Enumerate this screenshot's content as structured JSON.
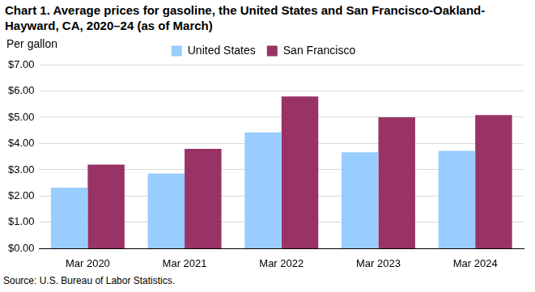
{
  "chart_data": {
    "type": "bar",
    "title": "Chart 1. Average prices for gasoline, the United States and San Francisco-Oakland-Hayward, CA, 2020–24 (as of March)",
    "ylabel": "Per gallon",
    "source": "Source: U.S. Bureau of Labor Statistics.",
    "categories": [
      "Mar 2020",
      "Mar 2021",
      "Mar 2022",
      "Mar 2023",
      "Mar 2024"
    ],
    "series": [
      {
        "name": "United States",
        "color": "#99ccff",
        "values": [
          2.32,
          2.86,
          4.42,
          3.67,
          3.72
        ]
      },
      {
        "name": "San Francisco",
        "color": "#993366",
        "values": [
          3.2,
          3.8,
          5.79,
          5.0,
          5.08
        ]
      }
    ],
    "ylim": [
      0,
      7
    ],
    "yticks": [
      {
        "value": 0,
        "label": "$0.00"
      },
      {
        "value": 1,
        "label": "$1.00"
      },
      {
        "value": 2,
        "label": "$2.00"
      },
      {
        "value": 3,
        "label": "$3.00"
      },
      {
        "value": 4,
        "label": "$4.00"
      },
      {
        "value": 5,
        "label": "$5.00"
      },
      {
        "value": 6,
        "label": "$6.00"
      },
      {
        "value": 7,
        "label": "$7.00"
      }
    ],
    "grid": true,
    "legend": "top"
  }
}
